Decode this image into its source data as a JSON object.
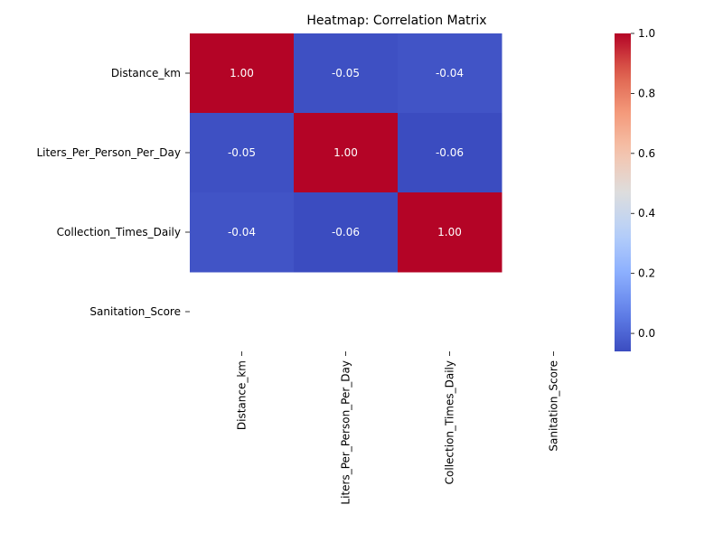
{
  "chart_data": {
    "type": "heatmap",
    "title": "Heatmap: Correlation Matrix",
    "rows": [
      "Distance_km",
      "Liters_Per_Person_Per_Day",
      "Collection_Times_Daily",
      "Sanitation_Score"
    ],
    "columns": [
      "Distance_km",
      "Liters_Per_Person_Per_Day",
      "Collection_Times_Daily",
      "Sanitation_Score"
    ],
    "values": [
      [
        1.0,
        -0.05,
        -0.04,
        null
      ],
      [
        -0.05,
        1.0,
        -0.06,
        null
      ],
      [
        -0.04,
        -0.06,
        1.0,
        null
      ],
      [
        null,
        null,
        null,
        null
      ]
    ],
    "annotation_format": "0.00",
    "colormap": "coolwarm",
    "colorbar": {
      "vmin": -0.06,
      "vmax": 1.0,
      "ticks": [
        0.0,
        0.2,
        0.4,
        0.6,
        0.8,
        1.0
      ],
      "tick_labels": [
        "0.0",
        "0.2",
        "0.4",
        "0.6",
        "0.8",
        "1.0"
      ],
      "placement": "right"
    }
  }
}
